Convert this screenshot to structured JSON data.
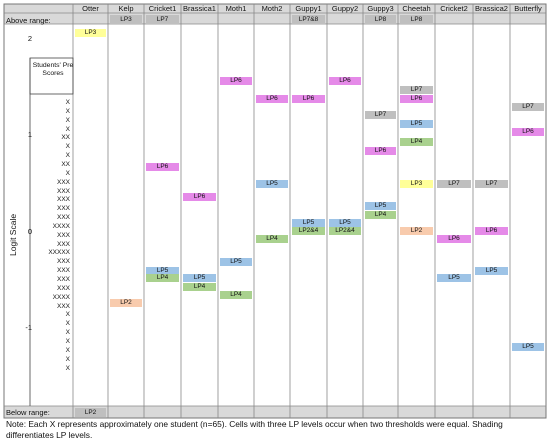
{
  "table": {
    "columns": [
      "Otter",
      "Kelp",
      "Cricket1",
      "Brassica1",
      "Moth1",
      "Moth2",
      "Guppy1",
      "Guppy2",
      "Guppy3",
      "Cheetah",
      "Cricket2",
      "Brassica2",
      "Butterfly"
    ],
    "above_range_label": "Above range:",
    "below_range_label": "Below range:",
    "above": [
      "",
      "LP3",
      "LP7",
      "",
      "",
      "",
      "LP7&8",
      "",
      "LP8",
      "LP8",
      "",
      "",
      ""
    ],
    "below": [
      "LP2",
      "",
      "",
      "",
      "",
      "",
      "",
      "",
      "",
      "",
      "",
      "",
      ""
    ],
    "y_axis_label": "Logit Scale",
    "y_ticks": [
      "2",
      "1",
      "0",
      "-1"
    ],
    "students_pre_label": "Students' Pre Scores",
    "x_rows": [
      "X",
      "X",
      "X",
      "X",
      "XX",
      "X",
      "X",
      "XX",
      "X",
      "XXX",
      "XXX",
      "XXX",
      "XXX",
      "XXX",
      "XXXX",
      "XXX",
      "XXX",
      "XXXXX",
      "XXX",
      "XXX",
      "XXX",
      "XXX",
      "XXXX",
      "XXX",
      "X",
      "X",
      "X",
      "X",
      "X",
      "X",
      "X"
    ],
    "cells": [
      {
        "col": 0,
        "level": 2.05,
        "text": "LP3",
        "color": "#ffff99"
      },
      {
        "col": 1,
        "level": -0.75,
        "text": "LP2",
        "color": "#f8cbad"
      },
      {
        "col": 2,
        "level": 0.66,
        "text": "LP6",
        "color": "#e58ae8"
      },
      {
        "col": 2,
        "level": -0.41,
        "text": "LP5",
        "color": "#9dc3e6"
      },
      {
        "col": 2,
        "level": -0.49,
        "text": "LP4",
        "color": "#a9d18e"
      },
      {
        "col": 3,
        "level": 0.35,
        "text": "LP6",
        "color": "#e58ae8"
      },
      {
        "col": 3,
        "level": -0.49,
        "text": "LP5",
        "color": "#9dc3e6"
      },
      {
        "col": 3,
        "level": -0.58,
        "text": "LP4",
        "color": "#a9d18e"
      },
      {
        "col": 4,
        "level": 1.55,
        "text": "LP6",
        "color": "#e58ae8"
      },
      {
        "col": 4,
        "level": -0.32,
        "text": "LP5",
        "color": "#9dc3e6"
      },
      {
        "col": 4,
        "level": -0.66,
        "text": "LP4",
        "color": "#a9d18e"
      },
      {
        "col": 5,
        "level": 1.37,
        "text": "LP6",
        "color": "#e58ae8"
      },
      {
        "col": 5,
        "level": 0.49,
        "text": "LP5",
        "color": "#9dc3e6"
      },
      {
        "col": 5,
        "level": -0.08,
        "text": "LP4",
        "color": "#a9d18e"
      },
      {
        "col": 6,
        "level": 1.37,
        "text": "LP6",
        "color": "#e58ae8"
      },
      {
        "col": 6,
        "level": 0.08,
        "text": "LP5",
        "color": "#9dc3e6"
      },
      {
        "col": 6,
        "level": 0.0,
        "text": "LP2&4",
        "color": "#a9d18e"
      },
      {
        "col": 7,
        "level": 1.55,
        "text": "LP6",
        "color": "#e58ae8"
      },
      {
        "col": 7,
        "level": 0.08,
        "text": "LP5",
        "color": "#9dc3e6"
      },
      {
        "col": 7,
        "level": 0.0,
        "text": "LP2&4",
        "color": "#a9d18e"
      },
      {
        "col": 8,
        "level": 1.2,
        "text": "LP7",
        "color": "#bfbfbf"
      },
      {
        "col": 8,
        "level": 0.83,
        "text": "LP6",
        "color": "#e58ae8"
      },
      {
        "col": 8,
        "level": 0.26,
        "text": "LP5",
        "color": "#9dc3e6"
      },
      {
        "col": 8,
        "level": 0.17,
        "text": "LP4",
        "color": "#a9d18e"
      },
      {
        "col": 9,
        "level": 1.46,
        "text": "LP7",
        "color": "#bfbfbf"
      },
      {
        "col": 9,
        "level": 1.37,
        "text": "LP6",
        "color": "#e58ae8"
      },
      {
        "col": 9,
        "level": 1.11,
        "text": "LP5",
        "color": "#9dc3e6"
      },
      {
        "col": 9,
        "level": 0.92,
        "text": "LP4",
        "color": "#a9d18e"
      },
      {
        "col": 9,
        "level": 0.49,
        "text": "LP3",
        "color": "#ffff99"
      },
      {
        "col": 9,
        "level": 0.0,
        "text": "LP2",
        "color": "#f8cbad"
      },
      {
        "col": 10,
        "level": 0.49,
        "text": "LP7",
        "color": "#bfbfbf"
      },
      {
        "col": 10,
        "level": -0.08,
        "text": "LP6",
        "color": "#e58ae8"
      },
      {
        "col": 10,
        "level": -0.49,
        "text": "LP5",
        "color": "#9dc3e6"
      },
      {
        "col": 11,
        "level": 0.49,
        "text": "LP7",
        "color": "#bfbfbf"
      },
      {
        "col": 11,
        "level": 0.0,
        "text": "LP6",
        "color": "#e58ae8"
      },
      {
        "col": 11,
        "level": -0.41,
        "text": "LP5",
        "color": "#9dc3e6"
      },
      {
        "col": 12,
        "level": 1.29,
        "text": "LP7",
        "color": "#bfbfbf"
      },
      {
        "col": 12,
        "level": 1.03,
        "text": "LP6",
        "color": "#e58ae8"
      },
      {
        "col": 12,
        "level": -1.2,
        "text": "LP5",
        "color": "#9dc3e6"
      }
    ],
    "above_colors": {
      "header": "#d9d9d9",
      "above_cells": "#bfbfbf"
    },
    "note": "Note: Each X represents approximately one student (n=65). Cells with three LP levels occur when two thresholds were equal. Shading differentiates LP levels."
  }
}
